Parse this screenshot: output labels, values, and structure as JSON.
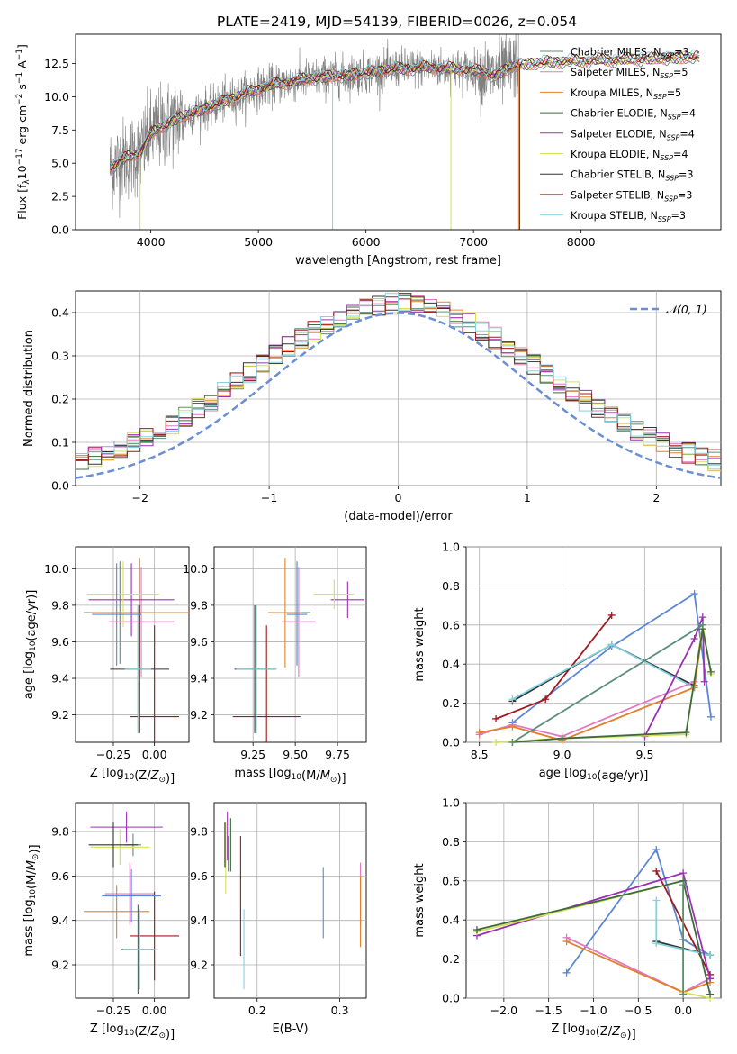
{
  "figure_title": "PLATE=2419, MJD=54139, FIBERID=0026, z=0.054",
  "colors": {
    "Chabrier MILES": "#5a8e7a",
    "Salpeter MILES": "#e377c2",
    "Kroupa MILES": "#e0812b",
    "Chabrier ELODIE": "#3d6b3d",
    "Salpeter ELODIE": "#9b30b5",
    "Kroupa ELODIE": "#d4e157",
    "Chabrier STELIB": "#333333",
    "Salpeter STELIB": "#a0191d",
    "Kroupa STELIB": "#80d4e0",
    "observed": "#808080",
    "gaussian": "#6a8fd4",
    "blue": "#5b87d6"
  },
  "chart_data": [
    {
      "id": "spectrum",
      "type": "line",
      "title": "PLATE=2419, MJD=54139, FIBERID=0026, z=0.054",
      "xlabel": "wavelength [Angstrom, rest frame]",
      "ylabel": "Flux [f_λ 10^-17 erg cm^-2 s^-1 A^-1]",
      "xlim": [
        3300,
        9300
      ],
      "ylim": [
        0,
        14.7
      ],
      "xticks": [
        4000,
        5000,
        6000,
        7000,
        8000
      ],
      "yticks": [
        0.0,
        2.5,
        5.0,
        7.5,
        10.0,
        12.5
      ],
      "grid": false,
      "legend_position": "upper-right",
      "continuum": [
        [
          3600,
          4.6
        ],
        [
          3800,
          5.5
        ],
        [
          3900,
          5.8
        ],
        [
          4000,
          7.2
        ],
        [
          4200,
          8.2
        ],
        [
          4500,
          9.1
        ],
        [
          4800,
          10.0
        ],
        [
          5000,
          10.6
        ],
        [
          5200,
          11.0
        ],
        [
          5500,
          11.4
        ],
        [
          5800,
          11.6
        ],
        [
          6000,
          11.8
        ],
        [
          6300,
          12.1
        ],
        [
          6600,
          12.2
        ],
        [
          7000,
          12.0
        ],
        [
          7200,
          11.6
        ],
        [
          7400,
          12.4
        ],
        [
          7700,
          12.6
        ],
        [
          8000,
          12.7
        ],
        [
          8400,
          12.8
        ],
        [
          8800,
          12.9
        ],
        [
          9100,
          13.0
        ]
      ],
      "series": [
        {
          "name": "Chabrier MILES",
          "legend": "Chabrier MILES, N_SSP=3"
        },
        {
          "name": "Salpeter MILES",
          "legend": "Salpeter MILES, N_SSP=5"
        },
        {
          "name": "Kroupa MILES",
          "legend": "Kroupa MILES, N_SSP=5"
        },
        {
          "name": "Chabrier ELODIE",
          "legend": "Chabrier ELODIE, N_SSP=4"
        },
        {
          "name": "Salpeter ELODIE",
          "legend": "Salpeter ELODIE, N_SSP=4"
        },
        {
          "name": "Kroupa ELODIE",
          "legend": "Kroupa ELODIE, N_SSP=4"
        },
        {
          "name": "Chabrier STELIB",
          "legend": "Chabrier STELIB, N_SSP=3"
        },
        {
          "name": "Salpeter STELIB",
          "legend": "Salpeter STELIB, N_SSP=3"
        },
        {
          "name": "Kroupa STELIB",
          "legend": "Kroupa STELIB, N_SSP=3"
        }
      ]
    },
    {
      "id": "residuals",
      "type": "line",
      "xlabel": "(data-model)/error",
      "ylabel": "Normed distribution",
      "xlim": [
        -2.5,
        2.5
      ],
      "ylim": [
        0,
        0.45
      ],
      "xticks": [
        -2,
        -1,
        0,
        1,
        2
      ],
      "yticks": [
        0.0,
        0.1,
        0.2,
        0.3,
        0.4
      ],
      "grid": true,
      "legend_position": "upper-right",
      "gaussian_label": "𝒩(0, 1)",
      "bin_width": 0.1
    },
    {
      "id": "age_vs_Z",
      "type": "scatter",
      "xlabel": "Z [log10(Z/Z⊙)]",
      "ylabel": "age  [log10(age/yr)]",
      "xlim": [
        -0.48,
        0.21
      ],
      "ylim": [
        9.05,
        10.12
      ],
      "xticks": [
        -0.25,
        0.0
      ],
      "xticklabels": [
        "−0.25",
        "0.00"
      ],
      "yticks": [
        9.2,
        9.4,
        9.6,
        9.8,
        10.0
      ],
      "grid": true,
      "points": [
        {
          "series": "Chabrier MILES",
          "x": -0.21,
          "y": 9.76,
          "xerr": 0.22,
          "yerr": 0.28
        },
        {
          "series": "Salpeter MILES",
          "x": -0.08,
          "y": 9.71,
          "xerr": 0.2,
          "yerr": 0.3
        },
        {
          "series": "Kroupa MILES",
          "x": -0.09,
          "y": 9.76,
          "xerr": 0.3,
          "yerr": 0.3
        },
        {
          "series": "Chabrier ELODIE",
          "x": -0.1,
          "y": 9.45,
          "xerr": 0.08,
          "yerr": 0.35
        },
        {
          "series": "Salpeter ELODIE",
          "x": -0.14,
          "y": 9.83,
          "xerr": 0.26,
          "yerr": 0.2
        },
        {
          "series": "Kroupa ELODIE",
          "x": -0.19,
          "y": 9.86,
          "xerr": 0.22,
          "yerr": 0.18
        },
        {
          "series": "Chabrier STELIB",
          "x": -0.09,
          "y": 9.45,
          "xerr": 0.18,
          "yerr": 0.35
        },
        {
          "series": "Salpeter STELIB",
          "x": 0.0,
          "y": 9.19,
          "xerr": 0.15,
          "yerr": 0.5
        },
        {
          "series": "Kroupa STELIB",
          "x": -0.1,
          "y": 9.45,
          "xerr": 0.08,
          "yerr": 0.35
        },
        {
          "series": "blue",
          "x": -0.23,
          "y": 9.75,
          "xerr": 0.15,
          "yerr": 0.28
        }
      ]
    },
    {
      "id": "age_vs_mass",
      "type": "scatter",
      "xlabel": "mass [log10(M/M⊙)]",
      "xlim": [
        9.02,
        9.92
      ],
      "ylim": [
        9.05,
        10.12
      ],
      "xticks": [
        9.25,
        9.5,
        9.75
      ],
      "xticklabels": [
        "9.25",
        "9.50",
        "9.75"
      ],
      "yticks": [
        9.2,
        9.4,
        9.6,
        9.8,
        10.0
      ],
      "grid": true,
      "points": [
        {
          "series": "Chabrier MILES",
          "x": 9.51,
          "y": 9.76,
          "xerr": 0.08,
          "yerr": 0.28
        },
        {
          "series": "Salpeter MILES",
          "x": 9.52,
          "y": 9.71,
          "xerr": 0.1,
          "yerr": 0.3
        },
        {
          "series": "Kroupa MILES",
          "x": 9.44,
          "y": 9.76,
          "xerr": 0.1,
          "yerr": 0.3
        },
        {
          "series": "Chabrier ELODIE",
          "x": 9.27,
          "y": 9.45,
          "xerr": 0.12,
          "yerr": 0.35
        },
        {
          "series": "Salpeter ELODIE",
          "x": 9.81,
          "y": 9.83,
          "xerr": 0.1,
          "yerr": 0.1
        },
        {
          "series": "Kroupa ELODIE",
          "x": 9.73,
          "y": 9.86,
          "xerr": 0.12,
          "yerr": 0.08
        },
        {
          "series": "Chabrier STELIB",
          "x": 9.26,
          "y": 9.45,
          "xerr": 0.12,
          "yerr": 0.35
        },
        {
          "series": "Salpeter STELIB",
          "x": 9.33,
          "y": 9.19,
          "xerr": 0.2,
          "yerr": 0.5
        },
        {
          "series": "Kroupa STELIB",
          "x": 9.27,
          "y": 9.45,
          "xerr": 0.12,
          "yerr": 0.35
        },
        {
          "series": "blue",
          "x": 9.51,
          "y": 9.75,
          "xerr": 0.06,
          "yerr": 0.28
        }
      ]
    },
    {
      "id": "weight_vs_age",
      "type": "line",
      "xlabel": "age  [log10(age/yr)]",
      "ylabel": "mass weight",
      "xlim": [
        8.42,
        9.96
      ],
      "ylim": [
        0,
        1
      ],
      "xticks": [
        8.5,
        9.0,
        9.5
      ],
      "xticklabels": [
        "8.5",
        "9.0",
        "9.5"
      ],
      "yticks": [
        0.0,
        0.2,
        0.4,
        0.6,
        0.8,
        1.0
      ],
      "grid": true,
      "series": [
        {
          "name": "blue",
          "points": [
            [
              8.7,
              0.1
            ],
            [
              9.3,
              0.49
            ],
            [
              9.8,
              0.76
            ],
            [
              9.9,
              0.13
            ]
          ]
        },
        {
          "name": "Salpeter STELIB",
          "points": [
            [
              8.6,
              0.12
            ],
            [
              8.9,
              0.22
            ],
            [
              9.3,
              0.65
            ]
          ]
        },
        {
          "name": "Chabrier STELIB",
          "points": [
            [
              8.7,
              0.21
            ],
            [
              9.3,
              0.5
            ],
            [
              9.8,
              0.29
            ]
          ]
        },
        {
          "name": "Kroupa STELIB",
          "points": [
            [
              8.7,
              0.22
            ],
            [
              9.3,
              0.5
            ],
            [
              9.8,
              0.28
            ]
          ]
        },
        {
          "name": "Salpeter MILES",
          "points": [
            [
              8.5,
              0.04
            ],
            [
              8.7,
              0.09
            ],
            [
              9.0,
              0.03
            ],
            [
              9.8,
              0.31
            ],
            [
              9.85,
              0.6
            ]
          ]
        },
        {
          "name": "Kroupa MILES",
          "points": [
            [
              8.5,
              0.05
            ],
            [
              8.7,
              0.08
            ],
            [
              9.0,
              0.01
            ],
            [
              9.8,
              0.28
            ],
            [
              9.85,
              0.58
            ]
          ]
        },
        {
          "name": "Salpeter ELODIE",
          "points": [
            [
              9.5,
              0.03
            ],
            [
              9.8,
              0.53
            ],
            [
              9.85,
              0.64
            ],
            [
              9.86,
              0.31
            ]
          ]
        },
        {
          "name": "Kroupa ELODIE",
          "points": [
            [
              8.6,
              0.0
            ],
            [
              9.0,
              0.02
            ],
            [
              9.75,
              0.04
            ],
            [
              9.85,
              0.6
            ],
            [
              9.9,
              0.35
            ]
          ]
        },
        {
          "name": "Chabrier ELODIE",
          "points": [
            [
              8.7,
              0.0
            ],
            [
              9.0,
              0.02
            ],
            [
              9.75,
              0.05
            ],
            [
              9.85,
              0.58
            ],
            [
              9.9,
              0.36
            ]
          ]
        },
        {
          "name": "Chabrier MILES",
          "points": [
            [
              8.7,
              0.0
            ],
            [
              9.85,
              0.6
            ]
          ]
        }
      ]
    },
    {
      "id": "mass_vs_Z",
      "type": "scatter",
      "xlabel": "Z [log10(Z/Z⊙)]",
      "ylabel": "mass [log10(M/M⊙)]",
      "xlim": [
        -0.48,
        0.21
      ],
      "ylim": [
        9.05,
        9.93
      ],
      "xticks": [
        -0.25,
        0.0
      ],
      "xticklabels": [
        "−0.25",
        "0.00"
      ],
      "yticks": [
        9.2,
        9.4,
        9.6,
        9.8
      ],
      "grid": true,
      "points": [
        {
          "series": "Chabrier MILES",
          "x": -0.13,
          "y": 9.74,
          "xerr": 0.05,
          "yerr": 0.05
        },
        {
          "series": "Salpeter MILES",
          "x": -0.15,
          "y": 9.52,
          "xerr": 0.15,
          "yerr": 0.14
        },
        {
          "series": "Kroupa MILES",
          "x": -0.23,
          "y": 9.44,
          "xerr": 0.2,
          "yerr": 0.12
        },
        {
          "series": "Chabrier ELODIE",
          "x": -0.1,
          "y": 9.27,
          "xerr": 0.1,
          "yerr": 0.2
        },
        {
          "series": "Salpeter ELODIE",
          "x": -0.17,
          "y": 9.82,
          "xerr": 0.22,
          "yerr": 0.07
        },
        {
          "series": "Kroupa ELODIE",
          "x": -0.21,
          "y": 9.73,
          "xerr": 0.18,
          "yerr": 0.08
        },
        {
          "series": "Chabrier STELIB",
          "x": -0.25,
          "y": 9.74,
          "xerr": 0.15,
          "yerr": 0.1
        },
        {
          "series": "Salpeter STELIB",
          "x": 0.0,
          "y": 9.33,
          "xerr": 0.15,
          "yerr": 0.2
        },
        {
          "series": "Kroupa STELIB",
          "x": -0.09,
          "y": 9.27,
          "xerr": 0.1,
          "yerr": 0.18
        },
        {
          "series": "blue",
          "x": -0.14,
          "y": 9.51,
          "xerr": 0.18,
          "yerr": 0.12
        }
      ]
    },
    {
      "id": "mass_vs_EBV",
      "type": "scatter",
      "xlabel": "E(B-V)",
      "xlim": [
        0.148,
        0.332
      ],
      "ylim": [
        9.05,
        9.93
      ],
      "xticks": [
        0.2,
        0.3
      ],
      "xticklabels": [
        "0.2",
        "0.3"
      ],
      "yticks": [
        9.2,
        9.4,
        9.6,
        9.8
      ],
      "grid": true,
      "points": [
        {
          "series": "Chabrier MILES",
          "x": 0.165,
          "y": 9.7,
          "yerr": 0.08
        },
        {
          "series": "Salpeter MILES",
          "x": 0.325,
          "y": 9.52,
          "yerr": 0.14
        },
        {
          "series": "Kroupa MILES",
          "x": 0.325,
          "y": 9.44,
          "yerr": 0.16
        },
        {
          "series": "Chabrier ELODIE",
          "x": 0.168,
          "y": 9.74,
          "yerr": 0.12
        },
        {
          "series": "Salpeter ELODIE",
          "x": 0.164,
          "y": 9.78,
          "yerr": 0.11
        },
        {
          "series": "Kroupa ELODIE",
          "x": 0.162,
          "y": 9.68,
          "yerr": 0.16
        },
        {
          "series": "Chabrier STELIB",
          "x": 0.161,
          "y": 9.74,
          "yerr": 0.1
        },
        {
          "series": "Salpeter STELIB",
          "x": 0.18,
          "y": 9.51,
          "yerr": 0.27
        },
        {
          "series": "Kroupa STELIB",
          "x": 0.184,
          "y": 9.27,
          "yerr": 0.18
        },
        {
          "series": "blue",
          "x": 0.28,
          "y": 9.48,
          "yerr": 0.16
        }
      ]
    },
    {
      "id": "weight_vs_Z",
      "type": "line",
      "xlabel": "Z [log10(Z/Z⊙)]",
      "ylabel": "mass weight",
      "xlim": [
        -2.42,
        0.42
      ],
      "ylim": [
        0,
        1
      ],
      "xticks": [
        -2.0,
        -1.5,
        -1.0,
        -0.5,
        0.0
      ],
      "xticklabels": [
        "−2.0",
        "−1.5",
        "−1.0",
        "−0.5",
        "0.0"
      ],
      "yticks": [
        0.0,
        0.2,
        0.4,
        0.6,
        0.8,
        1.0
      ],
      "grid": true,
      "series": [
        {
          "name": "blue",
          "points": [
            [
              -1.3,
              0.13
            ],
            [
              -0.3,
              0.76
            ],
            [
              0.0,
              0.3
            ],
            [
              0.3,
              0.22
            ]
          ]
        },
        {
          "name": "Salpeter STELIB",
          "points": [
            [
              -0.3,
              0.65
            ],
            [
              0.3,
              0.12
            ]
          ]
        },
        {
          "name": "Chabrier STELIB",
          "points": [
            [
              -0.3,
              0.29
            ],
            [
              0.3,
              0.22
            ]
          ]
        },
        {
          "name": "Kroupa STELIB",
          "points": [
            [
              -0.3,
              0.5
            ],
            [
              -0.3,
              0.28
            ],
            [
              0.3,
              0.22
            ]
          ]
        },
        {
          "name": "Salpeter MILES",
          "points": [
            [
              -1.3,
              0.31
            ],
            [
              0.0,
              0.03
            ],
            [
              0.3,
              0.1
            ]
          ]
        },
        {
          "name": "Kroupa MILES",
          "points": [
            [
              -1.3,
              0.29
            ],
            [
              0.0,
              0.03
            ],
            [
              0.3,
              0.08
            ]
          ]
        },
        {
          "name": "Salpeter ELODIE",
          "points": [
            [
              -2.3,
              0.32
            ],
            [
              0.0,
              0.64
            ],
            [
              0.3,
              0.1
            ]
          ]
        },
        {
          "name": "Kroupa ELODIE",
          "points": [
            [
              -2.3,
              0.34
            ],
            [
              0.0,
              0.6
            ],
            [
              0.0,
              0.03
            ],
            [
              0.3,
              0.0
            ]
          ]
        },
        {
          "name": "Chabrier ELODIE",
          "points": [
            [
              -2.3,
              0.35
            ],
            [
              0.0,
              0.6
            ],
            [
              0.3,
              0.02
            ]
          ]
        },
        {
          "name": "Chabrier MILES",
          "points": [
            [
              0.0,
              0.58
            ],
            [
              0.0,
              0.02
            ]
          ]
        }
      ]
    }
  ]
}
